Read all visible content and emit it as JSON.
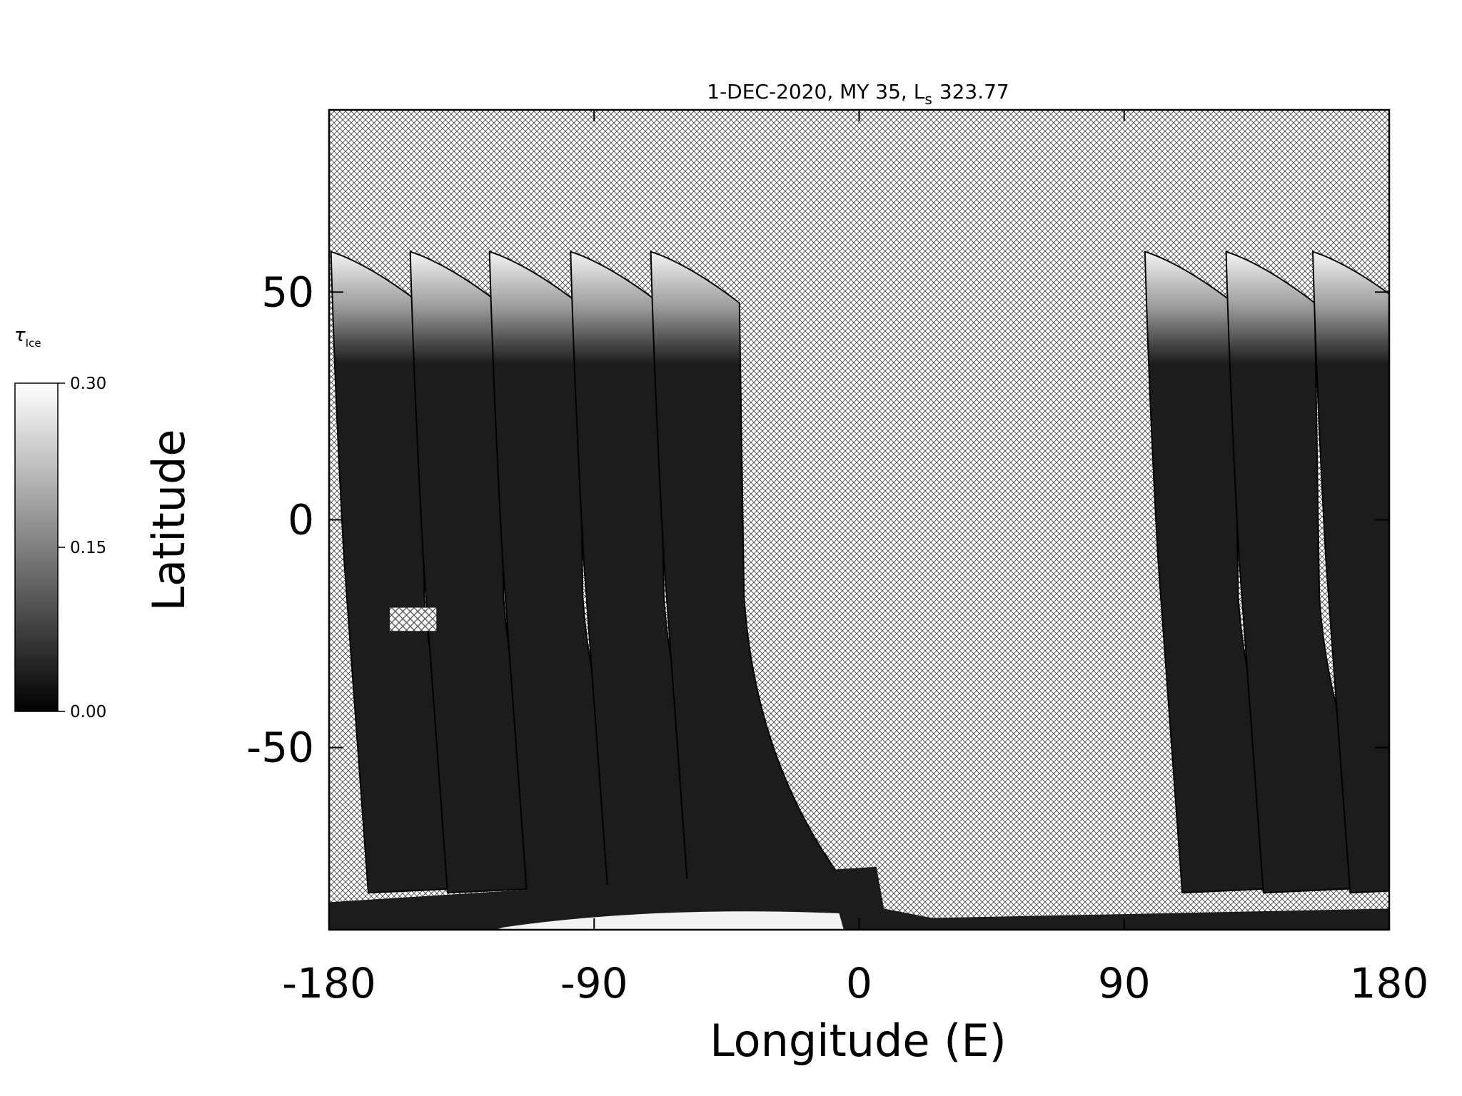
{
  "chart_data": {
    "type": "map",
    "title": "1-DEC-2020, MY 35,  L",
    "title_subscript": "s",
    "title_suffix": "323.77",
    "x_label": "Longitude (E)",
    "y_label": "Latitude",
    "xlim": [
      -180,
      180
    ],
    "xticks": [
      -180,
      -90,
      0,
      90,
      180
    ],
    "ylim": [
      -90,
      90
    ],
    "yticks": [
      -50,
      0,
      50
    ],
    "colorbar": {
      "label": "τ",
      "label_subscript": "Ice",
      "lim": [
        0,
        0.3
      ],
      "ticks": [
        {
          "value": 0,
          "label": "0.00"
        },
        {
          "value": 0.15,
          "label": "0.15"
        },
        {
          "value": 0.3,
          "label": "0.30"
        }
      ],
      "colors": [
        "#000000",
        "#ffffff"
      ]
    }
  }
}
